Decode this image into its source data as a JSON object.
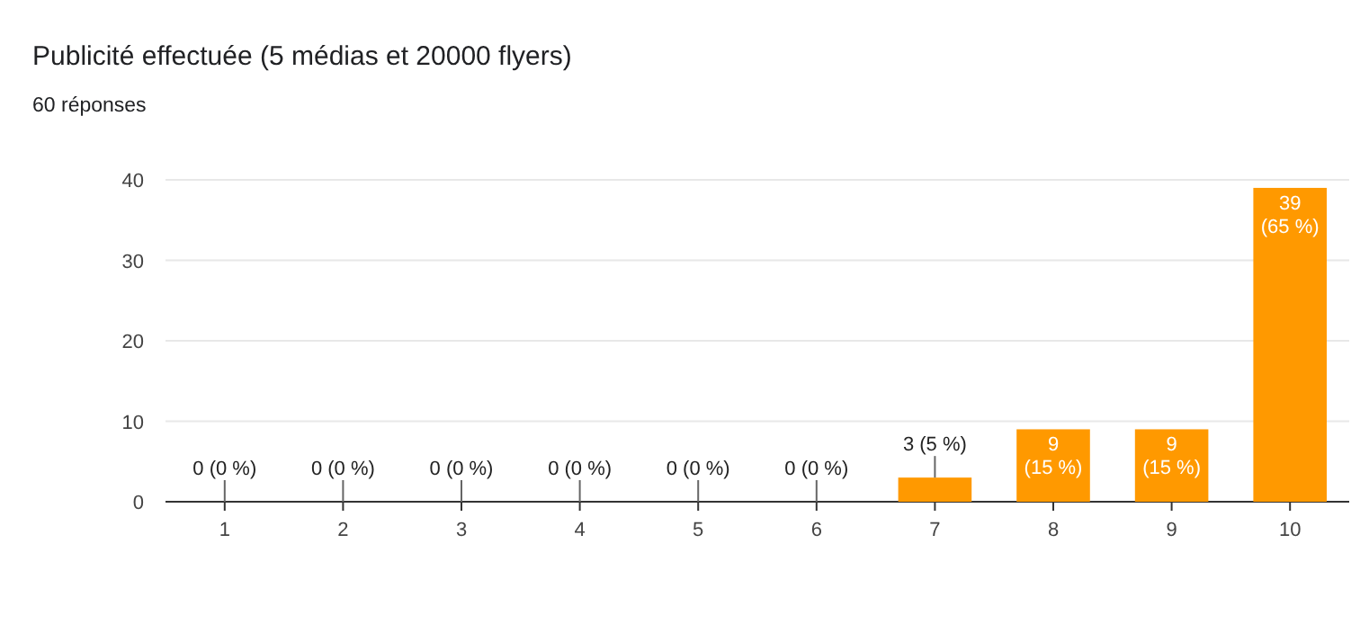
{
  "chart_data": {
    "type": "bar",
    "title": "Publicité effectuée  (5 médias et 20000 flyers)",
    "subtitle": "60 réponses",
    "categories": [
      "1",
      "2",
      "3",
      "4",
      "5",
      "6",
      "7",
      "8",
      "9",
      "10"
    ],
    "values": [
      0,
      0,
      0,
      0,
      0,
      0,
      3,
      9,
      9,
      39
    ],
    "value_labels": [
      "0 (0 %)",
      "0 (0 %)",
      "0 (0 %)",
      "0 (0 %)",
      "0 (0 %)",
      "0 (0 %)",
      "3 (5 %)",
      "9 (15 %)",
      "9 (15 %)",
      "39 (65 %)"
    ],
    "color": "#ff9900",
    "ylim": [
      0,
      40
    ],
    "yticks": [
      0,
      10,
      20,
      30,
      40
    ],
    "grid": "y"
  }
}
